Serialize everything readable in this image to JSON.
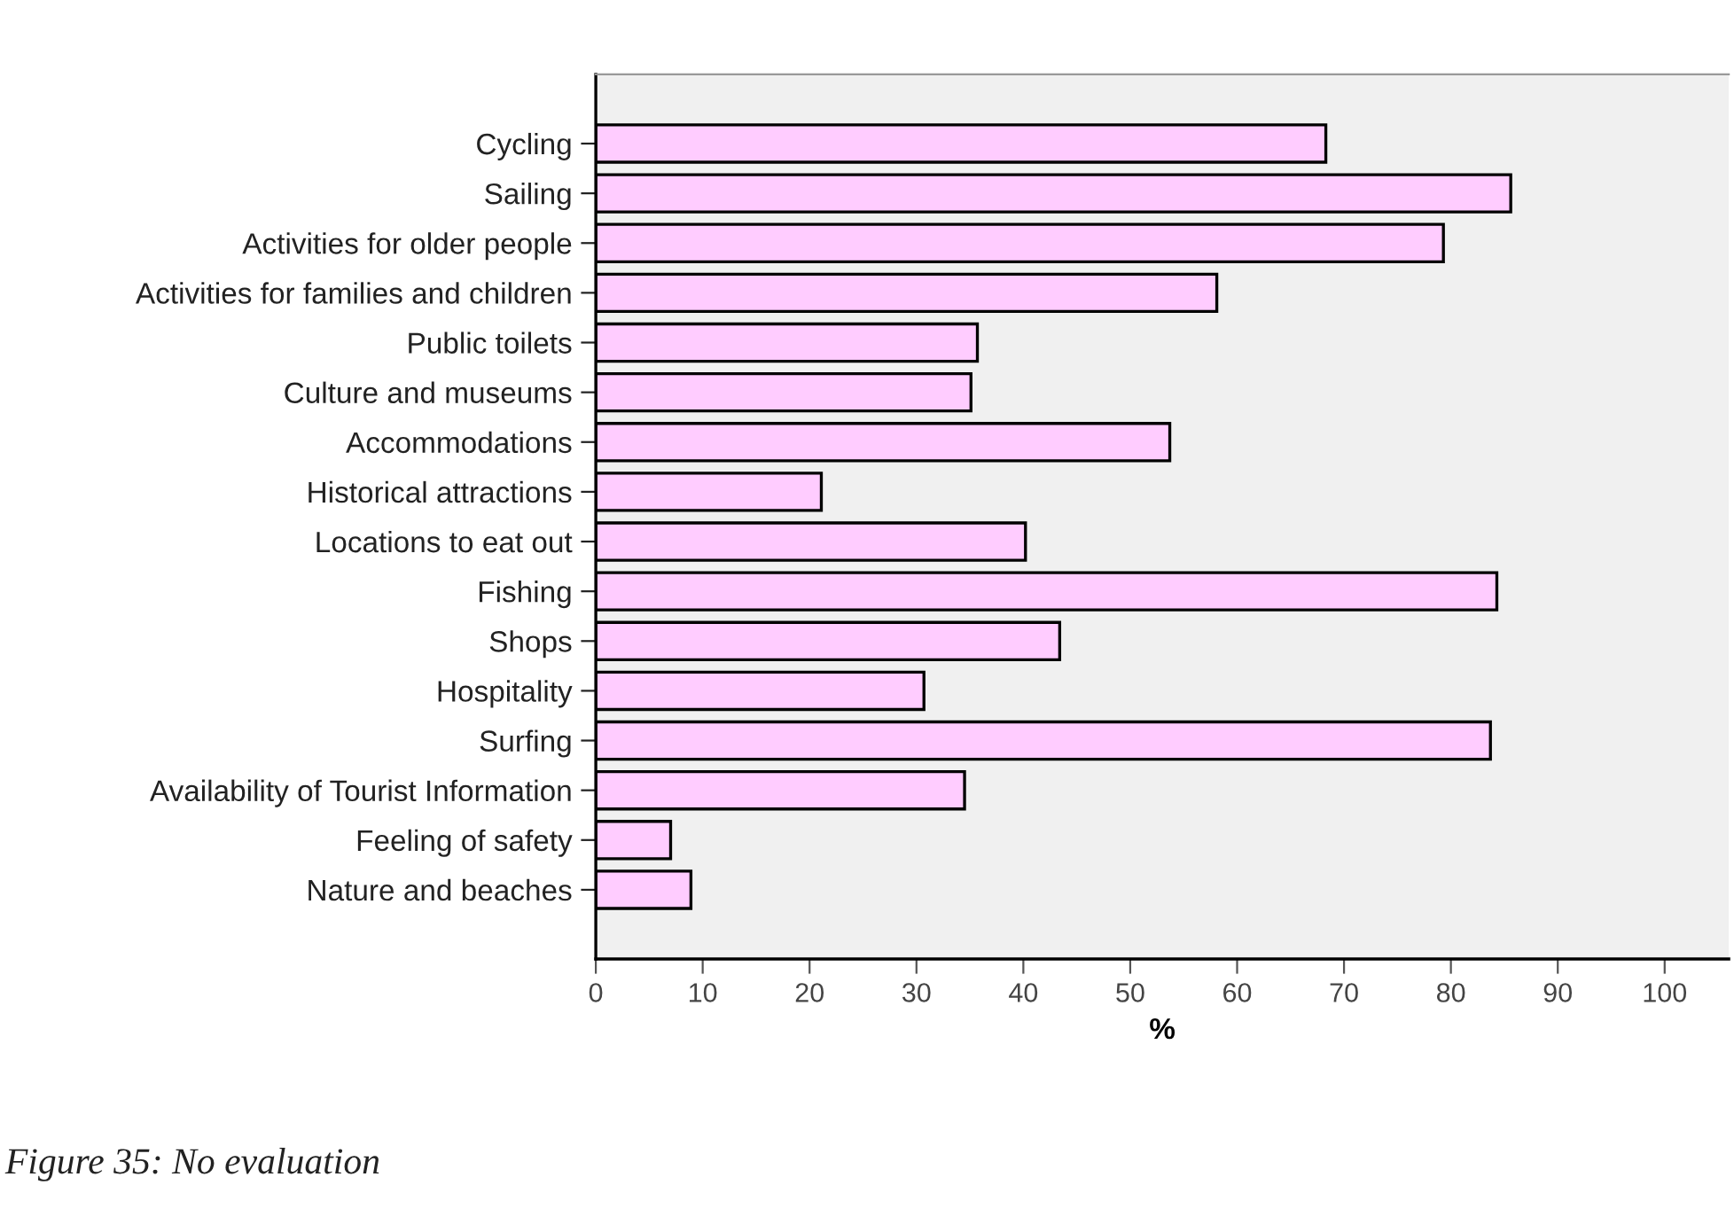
{
  "chart_data": {
    "type": "bar",
    "orientation": "horizontal",
    "categories": [
      "Cycling",
      "Sailing",
      "Activities for older people",
      "Activities for families and children",
      "Public toilets",
      "Culture and museums",
      "Accommodations",
      "Historical attractions",
      "Locations to eat out",
      "Fishing",
      "Shops",
      "Hospitality",
      "Surfing",
      "Availability of Tourist Information",
      "Feeling of safety",
      "Nature and beaches"
    ],
    "values": [
      68.3,
      85.6,
      79.3,
      58.1,
      35.7,
      35.1,
      53.7,
      21.1,
      40.2,
      84.3,
      43.4,
      30.7,
      83.7,
      34.5,
      7.0,
      8.9
    ],
    "color": "#ffccff",
    "xlabel": "%",
    "xlim": [
      0,
      106
    ],
    "xticks": [
      0,
      10,
      20,
      30,
      40,
      50,
      60,
      70,
      80,
      90,
      100
    ],
    "grid": false,
    "annotations": [
      "Figure 35: No evaluation"
    ]
  }
}
